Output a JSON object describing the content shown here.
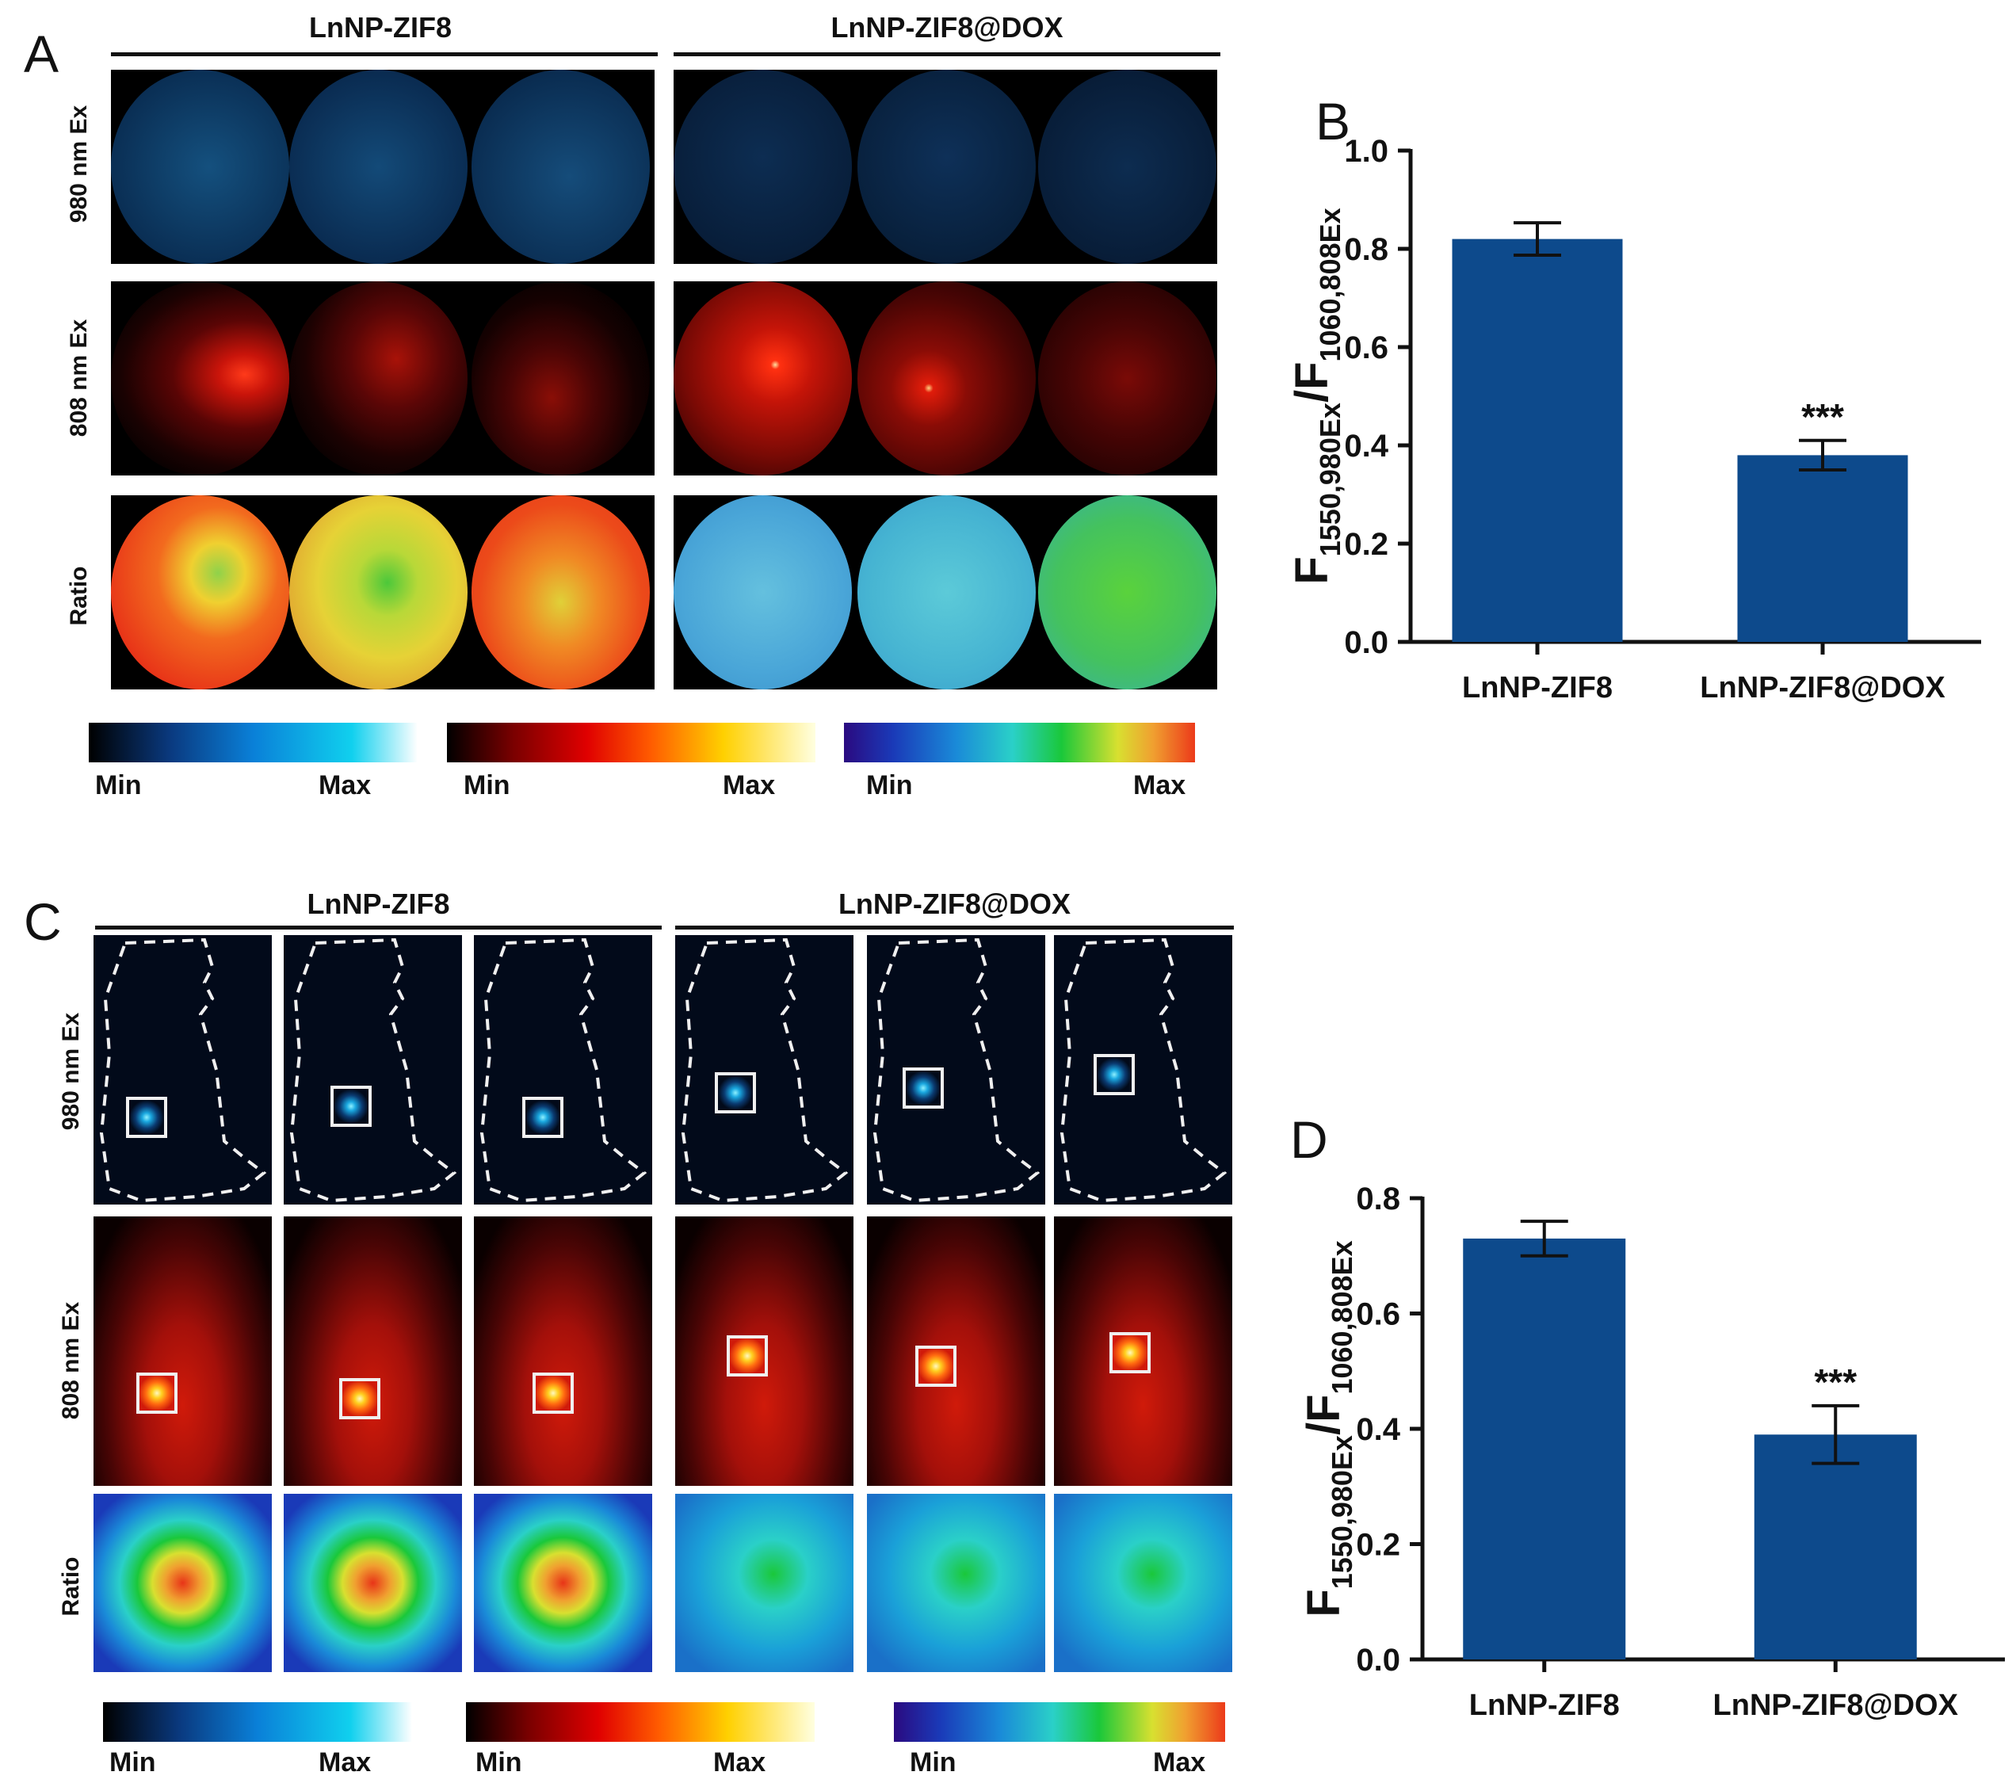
{
  "panels": {
    "A": {
      "letter": "A",
      "groups": [
        "LnNP-ZIF8",
        "LnNP-ZIF8@DOX"
      ],
      "rows": [
        "980 nm Ex",
        "808 nm Ex",
        "Ratio"
      ],
      "colorbars": [
        {
          "min": "Min",
          "max": "Max",
          "scheme": "blue"
        },
        {
          "min": "Min",
          "max": "Max",
          "scheme": "red"
        },
        {
          "min": "Min",
          "max": "Max",
          "scheme": "rainbow"
        }
      ]
    },
    "C": {
      "letter": "C",
      "groups": [
        "LnNP-ZIF8",
        "LnNP-ZIF8@DOX"
      ],
      "rows": [
        "980 nm Ex",
        "808 nm Ex",
        "Ratio"
      ],
      "colorbars": [
        {
          "min": "Min",
          "max": "Max",
          "scheme": "blue"
        },
        {
          "min": "Min",
          "max": "Max",
          "scheme": "red"
        },
        {
          "min": "Min",
          "max": "Max",
          "scheme": "rainbow"
        }
      ]
    }
  },
  "chart_data": [
    {
      "letter": "B",
      "type": "bar",
      "title": "",
      "categories": [
        "LnNP-ZIF8",
        "LnNP-ZIF8@DOX"
      ],
      "values": [
        0.82,
        0.38
      ],
      "errors": [
        0.033,
        0.03
      ],
      "significance": [
        "",
        "***"
      ],
      "ylim": [
        0,
        1.0
      ],
      "yticks": [
        "0.0",
        "0.2",
        "0.4",
        "0.6",
        "0.8",
        "1.0"
      ],
      "ylabel_main": "F",
      "ylabel_sub1": "1550,980Ex",
      "ylabel_sep": "/F",
      "ylabel_sub2": "1060,808Ex",
      "bar_color": "#0d4a8c"
    },
    {
      "letter": "D",
      "type": "bar",
      "title": "",
      "categories": [
        "LnNP-ZIF8",
        "LnNP-ZIF8@DOX"
      ],
      "values": [
        0.73,
        0.39
      ],
      "errors": [
        0.03,
        0.05
      ],
      "significance": [
        "",
        "***"
      ],
      "ylim": [
        0,
        0.8
      ],
      "yticks": [
        "0.0",
        "0.2",
        "0.4",
        "0.6",
        "0.8"
      ],
      "ylabel_main": "F",
      "ylabel_sub1": "1550,980Ex",
      "ylabel_sep": "/F",
      "ylabel_sub2": "1060,808Ex",
      "bar_color": "#0d4a8c"
    }
  ],
  "colors": {
    "bar": "#0d4a8c",
    "axis": "#111111"
  }
}
